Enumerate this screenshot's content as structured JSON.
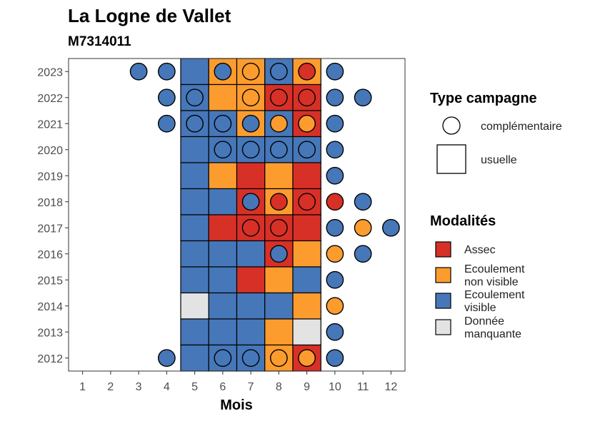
{
  "title": "La Logne de Vallet",
  "subtitle": "M7314011",
  "legend_campaign": {
    "title": "Type campagne",
    "items": [
      {
        "shape": "circle",
        "label": "complémentaire"
      },
      {
        "shape": "square",
        "label": "usuelle"
      }
    ]
  },
  "legend_modalites": {
    "title": "Modalités",
    "items": [
      {
        "key": "A",
        "lines": [
          "Assec"
        ]
      },
      {
        "key": "N",
        "lines": [
          "Ecoulement",
          "non visible"
        ]
      },
      {
        "key": "V",
        "lines": [
          "Ecoulement",
          "visible"
        ]
      },
      {
        "key": "M",
        "lines": [
          "Donnée",
          "manquante"
        ]
      }
    ]
  },
  "colors": {
    "A": "#d73027",
    "N": "#fd9c2e",
    "V": "#4677b8",
    "M": "#e3e3e3",
    "stroke": "#000000"
  },
  "chart_data": {
    "type": "heatmap",
    "xlabel": "Mois",
    "ylabel": "",
    "x_ticks": [
      1,
      2,
      3,
      4,
      5,
      6,
      7,
      8,
      9,
      10,
      11,
      12
    ],
    "y_ticks": [
      2012,
      2013,
      2014,
      2015,
      2016,
      2017,
      2018,
      2019,
      2020,
      2021,
      2022,
      2023
    ],
    "xlim": [
      0.5,
      12.5
    ],
    "ylim": [
      2011.5,
      2023.5
    ],
    "usuelle": [
      {
        "year": 2023,
        "cells": {
          "5": "V",
          "6": "N",
          "7": "N",
          "8": "V",
          "9": "N"
        }
      },
      {
        "year": 2022,
        "cells": {
          "5": "V",
          "6": "N",
          "7": "N",
          "8": "A",
          "9": "A"
        }
      },
      {
        "year": 2021,
        "cells": {
          "5": "V",
          "6": "V",
          "7": "N",
          "8": "V",
          "9": "A"
        }
      },
      {
        "year": 2020,
        "cells": {
          "5": "V",
          "6": "V",
          "7": "V",
          "8": "V",
          "9": "V"
        }
      },
      {
        "year": 2019,
        "cells": {
          "5": "V",
          "6": "N",
          "7": "A",
          "8": "N",
          "9": "A"
        }
      },
      {
        "year": 2018,
        "cells": {
          "5": "V",
          "6": "V",
          "7": "A",
          "8": "N",
          "9": "A"
        }
      },
      {
        "year": 2017,
        "cells": {
          "5": "V",
          "6": "A",
          "7": "A",
          "8": "A",
          "9": "A"
        }
      },
      {
        "year": 2016,
        "cells": {
          "5": "V",
          "6": "V",
          "7": "V",
          "8": "A",
          "9": "N"
        }
      },
      {
        "year": 2015,
        "cells": {
          "5": "V",
          "6": "V",
          "7": "A",
          "8": "N",
          "9": "V"
        }
      },
      {
        "year": 2014,
        "cells": {
          "5": "M",
          "6": "V",
          "7": "V",
          "8": "V",
          "9": "N"
        }
      },
      {
        "year": 2013,
        "cells": {
          "5": "V",
          "6": "V",
          "7": "V",
          "8": "N",
          "9": "M"
        }
      },
      {
        "year": 2012,
        "cells": {
          "5": "V",
          "6": "V",
          "7": "V",
          "8": "N",
          "9": "A"
        }
      }
    ],
    "complementaire": [
      {
        "year": 2023,
        "month": 3,
        "v": "V"
      },
      {
        "year": 2023,
        "month": 4,
        "v": "V"
      },
      {
        "year": 2023,
        "month": 6,
        "v": "V"
      },
      {
        "year": 2023,
        "month": 7,
        "v": "N"
      },
      {
        "year": 2023,
        "month": 8,
        "v": "V"
      },
      {
        "year": 2023,
        "month": 9,
        "v": "A"
      },
      {
        "year": 2023,
        "month": 10,
        "v": "V"
      },
      {
        "year": 2022,
        "month": 4,
        "v": "V"
      },
      {
        "year": 2022,
        "month": 5,
        "v": "V"
      },
      {
        "year": 2022,
        "month": 7,
        "v": "N"
      },
      {
        "year": 2022,
        "month": 8,
        "v": "A"
      },
      {
        "year": 2022,
        "month": 9,
        "v": "A"
      },
      {
        "year": 2022,
        "month": 10,
        "v": "V"
      },
      {
        "year": 2022,
        "month": 11,
        "v": "V"
      },
      {
        "year": 2021,
        "month": 4,
        "v": "V"
      },
      {
        "year": 2021,
        "month": 5,
        "v": "V"
      },
      {
        "year": 2021,
        "month": 6,
        "v": "V"
      },
      {
        "year": 2021,
        "month": 7,
        "v": "V"
      },
      {
        "year": 2021,
        "month": 8,
        "v": "N"
      },
      {
        "year": 2021,
        "month": 9,
        "v": "N"
      },
      {
        "year": 2021,
        "month": 10,
        "v": "V"
      },
      {
        "year": 2020,
        "month": 6,
        "v": "V"
      },
      {
        "year": 2020,
        "month": 7,
        "v": "V"
      },
      {
        "year": 2020,
        "month": 8,
        "v": "V"
      },
      {
        "year": 2020,
        "month": 9,
        "v": "V"
      },
      {
        "year": 2020,
        "month": 10,
        "v": "V"
      },
      {
        "year": 2019,
        "month": 10,
        "v": "V"
      },
      {
        "year": 2018,
        "month": 7,
        "v": "V"
      },
      {
        "year": 2018,
        "month": 8,
        "v": "A"
      },
      {
        "year": 2018,
        "month": 9,
        "v": "A"
      },
      {
        "year": 2018,
        "month": 10,
        "v": "A"
      },
      {
        "year": 2018,
        "month": 11,
        "v": "V"
      },
      {
        "year": 2017,
        "month": 7,
        "v": "A"
      },
      {
        "year": 2017,
        "month": 8,
        "v": "A"
      },
      {
        "year": 2017,
        "month": 10,
        "v": "V"
      },
      {
        "year": 2017,
        "month": 11,
        "v": "N"
      },
      {
        "year": 2017,
        "month": 12,
        "v": "V"
      },
      {
        "year": 2016,
        "month": 8,
        "v": "V"
      },
      {
        "year": 2016,
        "month": 10,
        "v": "N"
      },
      {
        "year": 2016,
        "month": 11,
        "v": "V"
      },
      {
        "year": 2015,
        "month": 10,
        "v": "V"
      },
      {
        "year": 2014,
        "month": 10,
        "v": "N"
      },
      {
        "year": 2013,
        "month": 10,
        "v": "V"
      },
      {
        "year": 2012,
        "month": 4,
        "v": "V"
      },
      {
        "year": 2012,
        "month": 6,
        "v": "V"
      },
      {
        "year": 2012,
        "month": 7,
        "v": "V"
      },
      {
        "year": 2012,
        "month": 8,
        "v": "N"
      },
      {
        "year": 2012,
        "month": 9,
        "v": "N"
      },
      {
        "year": 2012,
        "month": 10,
        "v": "V"
      }
    ]
  }
}
